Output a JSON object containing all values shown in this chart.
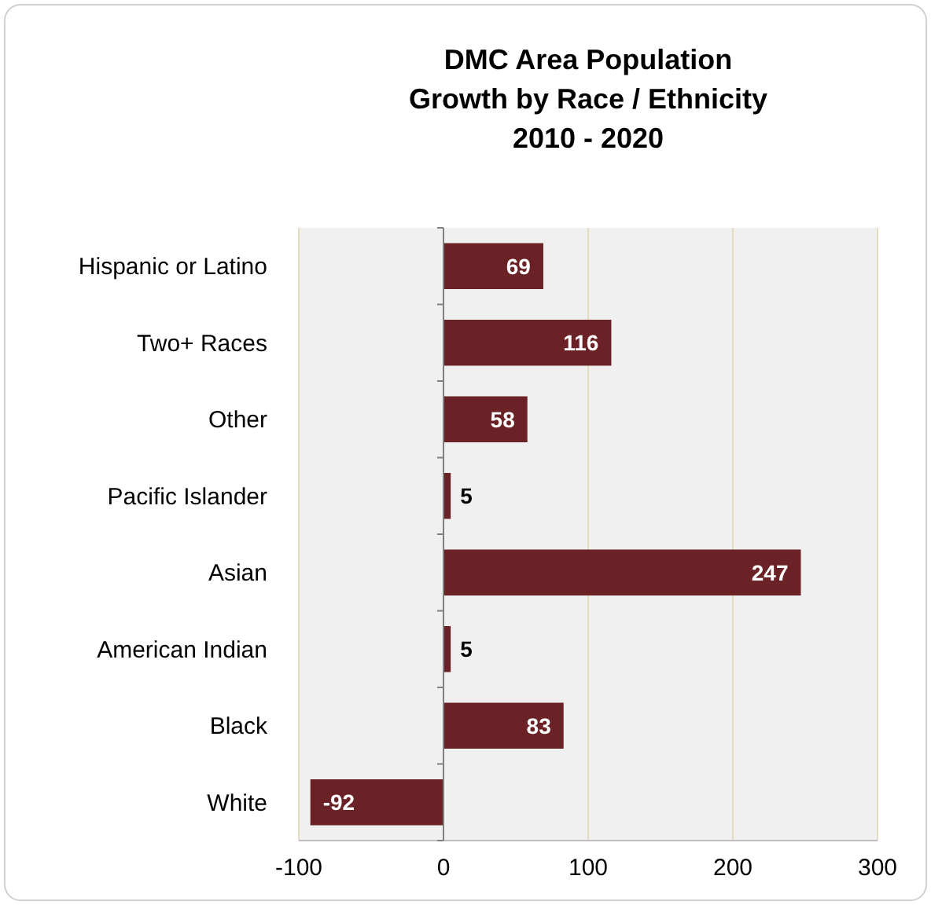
{
  "chart_data": {
    "type": "bar",
    "orientation": "horizontal",
    "title": "DMC Area Population\nGrowth by Race / Ethnicity\n2010 - 2020",
    "categories": [
      "Hispanic or Latino",
      "Two+ Races",
      "Other",
      "Pacific Islander",
      "Asian",
      "American Indian",
      "Black",
      "White"
    ],
    "values": [
      69,
      116,
      58,
      5,
      247,
      5,
      83,
      -92
    ],
    "color": "#6b2226",
    "xlim": [
      -100,
      300
    ],
    "xticks": [
      -100,
      0,
      100,
      200,
      300
    ],
    "grid": "x",
    "data_labels": true
  }
}
